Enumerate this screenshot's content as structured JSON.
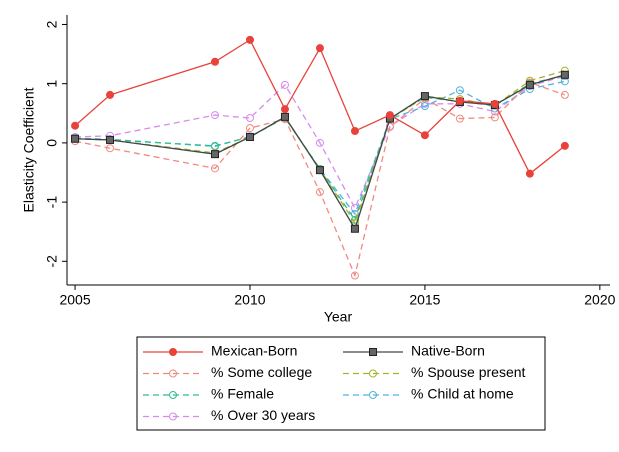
{
  "chart_data": {
    "type": "line",
    "x_label": "Year",
    "y_label": "Elasticity Coefficient",
    "x": [
      2005,
      2006,
      2009,
      2010,
      2011,
      2012,
      2013,
      2014,
      2015,
      2016,
      2017,
      2018,
      2019
    ],
    "xlim": [
      2004.77,
      2020.29
    ],
    "xticks": [
      2005,
      2010,
      2015,
      2020
    ],
    "ylim": [
      -2.4,
      2.16
    ],
    "yticks": [
      -2,
      -1,
      0,
      1,
      2
    ],
    "grid": false,
    "legend": "bottom",
    "series": [
      {
        "name": "Mexican-Born",
        "color": "#e8423a",
        "dashed": false,
        "marker": "circle",
        "filled": true,
        "values": [
          0.29,
          0.81,
          1.37,
          1.74,
          0.57,
          1.6,
          0.2,
          0.47,
          0.13,
          0.71,
          0.66,
          -0.52,
          -0.05
        ]
      },
      {
        "name": "Native-Born",
        "color": "#3d4a44",
        "dashed": false,
        "marker": "square",
        "filled": true,
        "values": [
          0.07,
          0.05,
          -0.19,
          0.1,
          0.44,
          -0.46,
          -1.45,
          0.41,
          0.79,
          0.69,
          0.64,
          0.98,
          1.15
        ]
      },
      {
        "name": "% Some college",
        "color": "#f08a80",
        "dashed": true,
        "marker": "circle",
        "filled": false,
        "values": [
          0.03,
          -0.09,
          -0.43,
          0.25,
          0.4,
          -0.83,
          -2.24,
          0.27,
          0.75,
          0.41,
          0.43,
          1.02,
          0.81
        ]
      },
      {
        "name": "% Spouse present",
        "color": "#a9b32c",
        "dashed": true,
        "marker": "circle",
        "filled": false,
        "values": [
          0.07,
          0.05,
          -0.17,
          0.1,
          0.43,
          -0.45,
          -1.35,
          0.4,
          0.78,
          0.74,
          0.63,
          1.05,
          1.22
        ]
      },
      {
        "name": "% Female",
        "color": "#2fbf8f",
        "dashed": true,
        "marker": "circle",
        "filled": false,
        "values": [
          0.07,
          0.05,
          -0.05,
          0.1,
          0.43,
          -0.44,
          -1.3,
          0.41,
          0.77,
          0.7,
          0.63,
          1.0,
          1.14
        ]
      },
      {
        "name": "% Child at home",
        "color": "#4fb4e0",
        "dashed": true,
        "marker": "circle",
        "filled": false,
        "values": [
          0.08,
          0.06,
          -0.06,
          0.11,
          0.42,
          -0.44,
          -1.2,
          0.4,
          0.62,
          0.89,
          0.58,
          0.91,
          1.04
        ]
      },
      {
        "name": "% Over 30 years",
        "color": "#d98af0",
        "dashed": true,
        "marker": "circle",
        "filled": false,
        "values": [
          0.1,
          0.12,
          0.47,
          0.42,
          0.98,
          0.0,
          -1.1,
          0.28,
          0.66,
          0.66,
          0.53,
          0.96,
          1.13
        ]
      }
    ]
  }
}
